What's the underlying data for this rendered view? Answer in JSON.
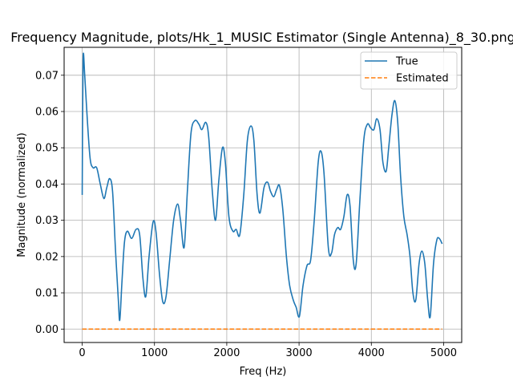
{
  "chart_data": {
    "type": "line",
    "title": "Frequency Magnitude, plots/Hk_1_MUSIC Estimator (Single Antenna)_8_30.png",
    "xlabel": "Freq (Hz)",
    "ylabel": "Magnitude (normalized)",
    "xlim": [
      -250,
      5250
    ],
    "ylim": [
      -0.0037,
      0.0777
    ],
    "xticks": [
      0,
      1000,
      2000,
      3000,
      4000,
      5000
    ],
    "yticks": [
      0.0,
      0.01,
      0.02,
      0.03,
      0.04,
      0.05,
      0.06,
      0.07
    ],
    "xtick_labels": [
      "0",
      "1000",
      "2000",
      "3000",
      "4000",
      "5000"
    ],
    "ytick_labels": [
      "0.00",
      "0.01",
      "0.02",
      "0.03",
      "0.04",
      "0.05",
      "0.06",
      "0.07"
    ],
    "grid": true,
    "legend_position": "top-right",
    "series": [
      {
        "name": "True",
        "color": "#1f77b4",
        "style": "solid",
        "points": [
          [
            0,
            0.037
          ],
          [
            12,
            0.074
          ],
          [
            35,
            0.07
          ],
          [
            70,
            0.058
          ],
          [
            110,
            0.047
          ],
          [
            150,
            0.0445
          ],
          [
            200,
            0.0445
          ],
          [
            250,
            0.04
          ],
          [
            300,
            0.036
          ],
          [
            340,
            0.039
          ],
          [
            380,
            0.0415
          ],
          [
            420,
            0.038
          ],
          [
            460,
            0.022
          ],
          [
            500,
            0.008
          ],
          [
            520,
            0.0025
          ],
          [
            550,
            0.013
          ],
          [
            585,
            0.024
          ],
          [
            625,
            0.027
          ],
          [
            685,
            0.025
          ],
          [
            745,
            0.0275
          ],
          [
            795,
            0.026
          ],
          [
            840,
            0.014
          ],
          [
            880,
            0.009
          ],
          [
            925,
            0.02
          ],
          [
            980,
            0.0295
          ],
          [
            1020,
            0.027
          ],
          [
            1070,
            0.015
          ],
          [
            1115,
            0.0075
          ],
          [
            1160,
            0.009
          ],
          [
            1210,
            0.019
          ],
          [
            1265,
            0.03
          ],
          [
            1320,
            0.0345
          ],
          [
            1360,
            0.03
          ],
          [
            1410,
            0.0225
          ],
          [
            1455,
            0.038
          ],
          [
            1505,
            0.054
          ],
          [
            1560,
            0.0575
          ],
          [
            1615,
            0.0565
          ],
          [
            1655,
            0.055
          ],
          [
            1710,
            0.057
          ],
          [
            1750,
            0.053
          ],
          [
            1800,
            0.038
          ],
          [
            1845,
            0.03
          ],
          [
            1890,
            0.041
          ],
          [
            1940,
            0.05
          ],
          [
            1980,
            0.046
          ],
          [
            2030,
            0.031
          ],
          [
            2085,
            0.027
          ],
          [
            2130,
            0.0275
          ],
          [
            2180,
            0.026
          ],
          [
            2235,
            0.037
          ],
          [
            2285,
            0.052
          ],
          [
            2335,
            0.056
          ],
          [
            2375,
            0.052
          ],
          [
            2420,
            0.037
          ],
          [
            2460,
            0.032
          ],
          [
            2515,
            0.039
          ],
          [
            2565,
            0.0405
          ],
          [
            2605,
            0.038
          ],
          [
            2650,
            0.0365
          ],
          [
            2690,
            0.0385
          ],
          [
            2730,
            0.0395
          ],
          [
            2775,
            0.033
          ],
          [
            2825,
            0.02
          ],
          [
            2870,
            0.012
          ],
          [
            2920,
            0.008
          ],
          [
            2960,
            0.006
          ],
          [
            3005,
            0.0035
          ],
          [
            3055,
            0.012
          ],
          [
            3110,
            0.0175
          ],
          [
            3160,
            0.019
          ],
          [
            3210,
            0.03
          ],
          [
            3265,
            0.046
          ],
          [
            3305,
            0.049
          ],
          [
            3345,
            0.043
          ],
          [
            3405,
            0.0225
          ],
          [
            3450,
            0.021
          ],
          [
            3490,
            0.026
          ],
          [
            3535,
            0.028
          ],
          [
            3575,
            0.0275
          ],
          [
            3620,
            0.031
          ],
          [
            3665,
            0.037
          ],
          [
            3705,
            0.034
          ],
          [
            3750,
            0.019
          ],
          [
            3790,
            0.018
          ],
          [
            3840,
            0.035
          ],
          [
            3895,
            0.052
          ],
          [
            3945,
            0.0565
          ],
          [
            3990,
            0.0555
          ],
          [
            4035,
            0.055
          ],
          [
            4075,
            0.058
          ],
          [
            4120,
            0.055
          ],
          [
            4160,
            0.046
          ],
          [
            4205,
            0.0435
          ],
          [
            4240,
            0.05
          ],
          [
            4285,
            0.059
          ],
          [
            4325,
            0.063
          ],
          [
            4365,
            0.057
          ],
          [
            4405,
            0.042
          ],
          [
            4450,
            0.031
          ],
          [
            4495,
            0.026
          ],
          [
            4535,
            0.02
          ],
          [
            4575,
            0.01
          ],
          [
            4615,
            0.008
          ],
          [
            4660,
            0.018
          ],
          [
            4700,
            0.0215
          ],
          [
            4740,
            0.018
          ],
          [
            4780,
            0.008
          ],
          [
            4815,
            0.0035
          ],
          [
            4860,
            0.018
          ],
          [
            4905,
            0.0245
          ],
          [
            4940,
            0.025
          ],
          [
            4980,
            0.0235
          ]
        ]
      },
      {
        "name": "Estimated",
        "color": "#ff7f0e",
        "style": "dashed",
        "points": [
          [
            0,
            0.0
          ],
          [
            4980,
            0.0
          ]
        ]
      }
    ]
  }
}
